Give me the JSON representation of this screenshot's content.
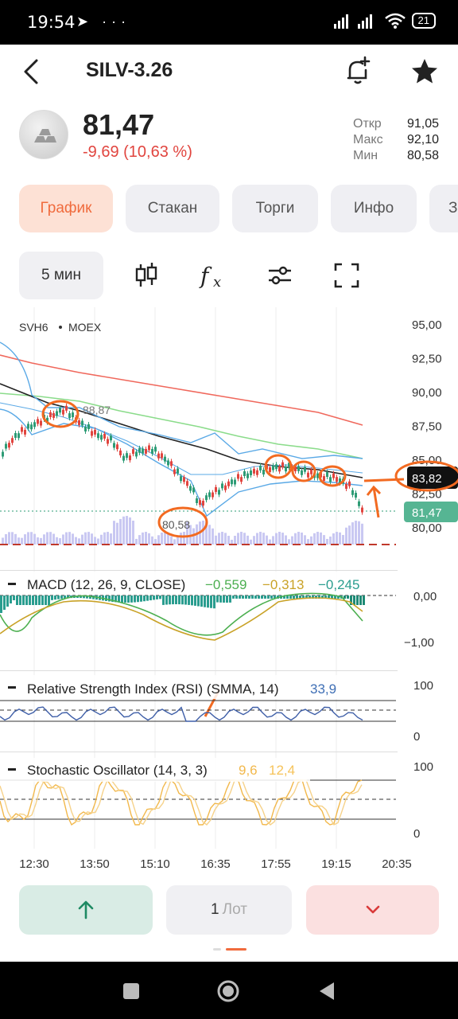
{
  "status_bar": {
    "time": "19:54",
    "battery": "21"
  },
  "header": {
    "title": "SILV-3.26"
  },
  "quote": {
    "price": "81,47",
    "change": "-9,69 (10,63 %)",
    "stats": [
      {
        "label": "Откр",
        "value": "91,05"
      },
      {
        "label": "Макс",
        "value": "92,10"
      },
      {
        "label": "Мин",
        "value": "80,58"
      }
    ]
  },
  "tabs": [
    "График",
    "Стакан",
    "Торги",
    "Инфо",
    "З"
  ],
  "toolbar": {
    "timeframe": "5 мин"
  },
  "chart": {
    "symbol": "SVH6",
    "exchange": "MOEX",
    "price_axis": [
      "95,00",
      "92,50",
      "90,00",
      "87,50",
      "85,00",
      "82,50",
      "80,00"
    ],
    "current_price": "81,47",
    "line_price": "83,82",
    "high_label": "88,87",
    "low_label": "80,58",
    "macd": {
      "label": "MACD (12, 26, 9, CLOSE)",
      "v1": "−0,559",
      "v2": "−0,313",
      "v3": "−0,245",
      "axis": [
        "0,00",
        "−1,00"
      ]
    },
    "rsi": {
      "label": "Relative Strength Index (RSI) (SMMA, 14)",
      "value": "33,9",
      "axis": [
        "100",
        "0"
      ]
    },
    "stoch": {
      "label": "Stochastic Oscillator (14, 3, 3)",
      "k": "9,6",
      "d": "12,4",
      "axis": [
        "100",
        "0"
      ]
    },
    "time_axis": [
      "12:30",
      "13:50",
      "15:10",
      "16:35",
      "17:55",
      "19:15",
      "20:35"
    ]
  },
  "bottom": {
    "lots": "1",
    "lots_unit": "Лот"
  },
  "colors": {
    "accent": "#f06b3d",
    "down": "#e1453f",
    "up": "#2e9c76",
    "annotation": "#f26a21"
  }
}
